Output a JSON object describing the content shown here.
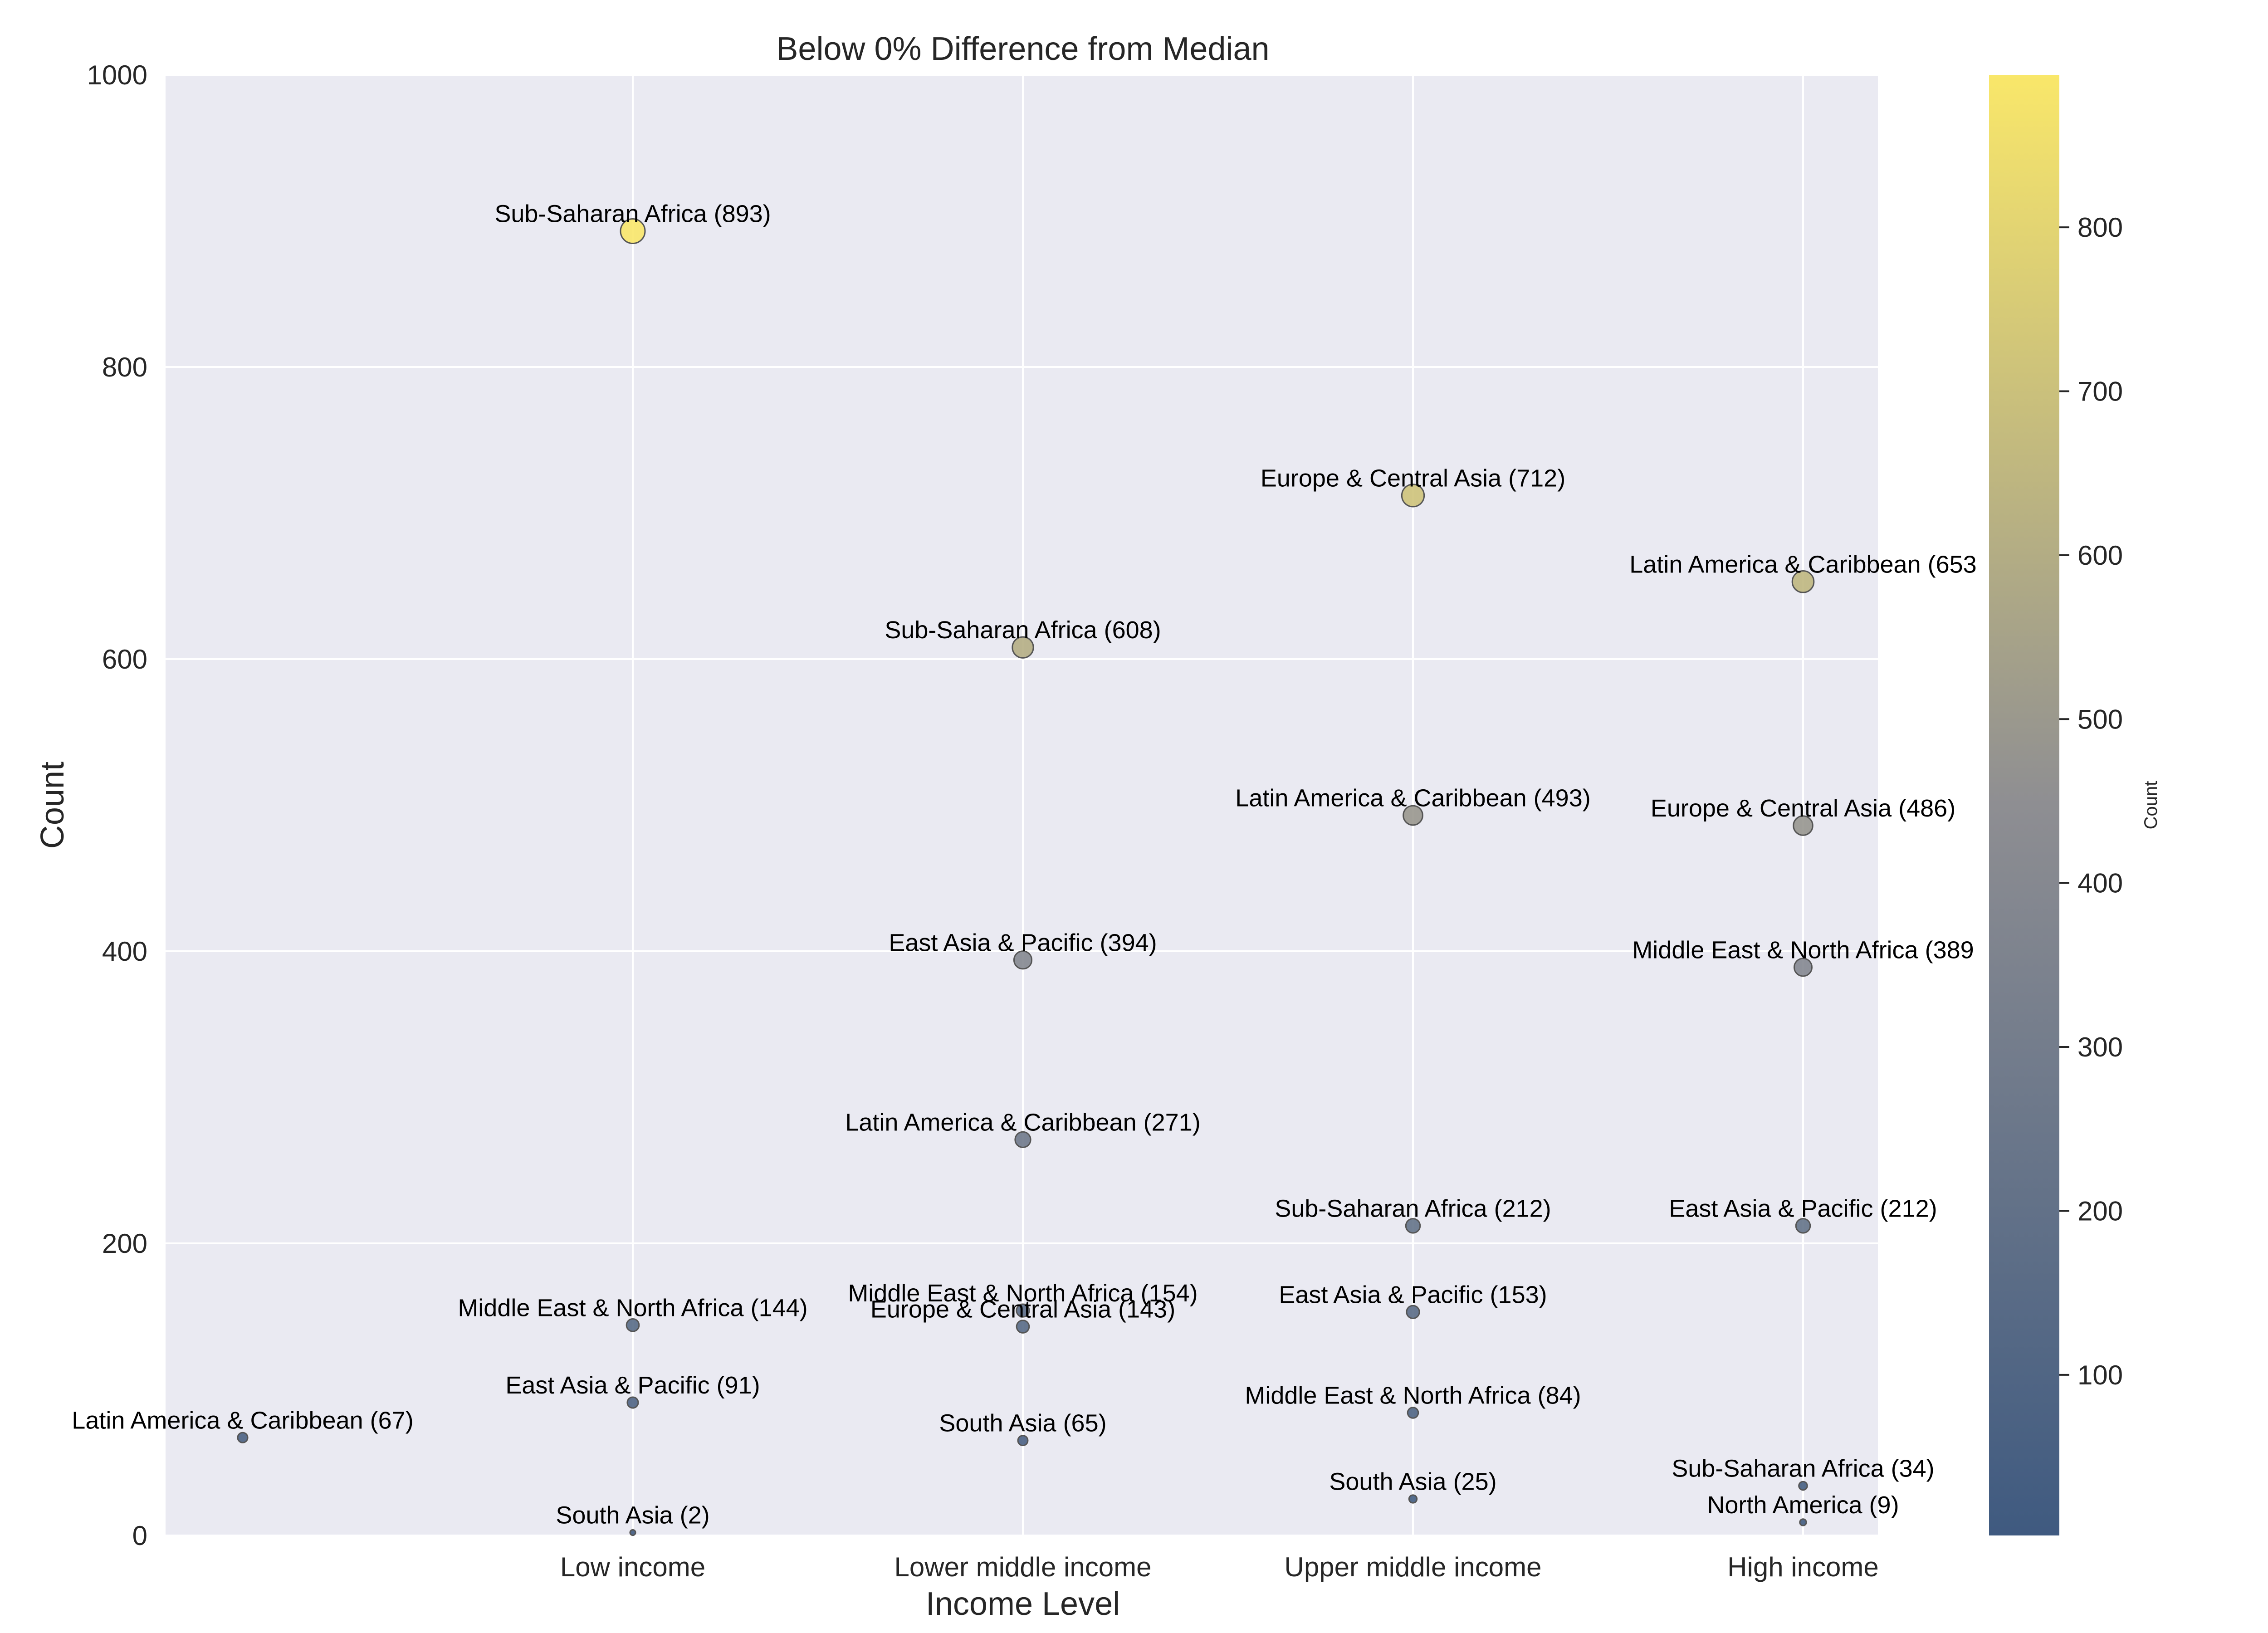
{
  "chart_data": {
    "type": "scatter",
    "title": "Below 0% Difference from Median",
    "xlabel": "Income Level",
    "ylabel": "Count",
    "categories": [
      "Low income",
      "Lower middle income",
      "Upper middle income",
      "High income"
    ],
    "ylim": [
      0,
      1000
    ],
    "yticks": [
      0,
      200,
      400,
      600,
      800,
      1000
    ],
    "grid": true,
    "colorbar": {
      "label": "Count",
      "ticks": [
        100,
        200,
        300,
        400,
        500,
        600,
        700,
        800
      ],
      "range": [
        2,
        893
      ],
      "colors": [
        "#3f5a80",
        "#8e8e92",
        "#f9e76a"
      ]
    },
    "points": [
      {
        "x_index": -1,
        "y": 67,
        "label": "Latin America & Caribbean (67)"
      },
      {
        "x_index": 0,
        "y": 893,
        "label": "Sub-Saharan Africa (893)"
      },
      {
        "x_index": 0,
        "y": 144,
        "label": "Middle East & North Africa (144)"
      },
      {
        "x_index": 0,
        "y": 91,
        "label": "East Asia & Pacific (91)"
      },
      {
        "x_index": 0,
        "y": 2,
        "label": "South Asia (2)"
      },
      {
        "x_index": 1,
        "y": 608,
        "label": "Sub-Saharan Africa (608)"
      },
      {
        "x_index": 1,
        "y": 394,
        "label": "East Asia & Pacific (394)"
      },
      {
        "x_index": 1,
        "y": 271,
        "label": "Latin America & Caribbean (271)"
      },
      {
        "x_index": 1,
        "y": 154,
        "label": "Middle East & North Africa (154)"
      },
      {
        "x_index": 1,
        "y": 143,
        "label": "Europe & Central Asia (143)"
      },
      {
        "x_index": 1,
        "y": 65,
        "label": "South Asia (65)"
      },
      {
        "x_index": 2,
        "y": 712,
        "label": "Europe & Central Asia (712)"
      },
      {
        "x_index": 2,
        "y": 493,
        "label": "Latin America & Caribbean (493)"
      },
      {
        "x_index": 2,
        "y": 212,
        "label": "Sub-Saharan Africa (212)"
      },
      {
        "x_index": 2,
        "y": 153,
        "label": "East Asia & Pacific (153)"
      },
      {
        "x_index": 2,
        "y": 84,
        "label": "Middle East & North Africa (84)"
      },
      {
        "x_index": 2,
        "y": 25,
        "label": "South Asia (25)"
      },
      {
        "x_index": 3,
        "y": 653,
        "label": "Latin America & Caribbean (653"
      },
      {
        "x_index": 3,
        "y": 486,
        "label": "Europe & Central Asia (486)"
      },
      {
        "x_index": 3,
        "y": 389,
        "label": "Middle East & North Africa (389"
      },
      {
        "x_index": 3,
        "y": 212,
        "label": "East Asia & Pacific (212)"
      },
      {
        "x_index": 3,
        "y": 34,
        "label": "Sub-Saharan Africa (34)"
      },
      {
        "x_index": 3,
        "y": 9,
        "label": "North America (9)"
      }
    ]
  }
}
